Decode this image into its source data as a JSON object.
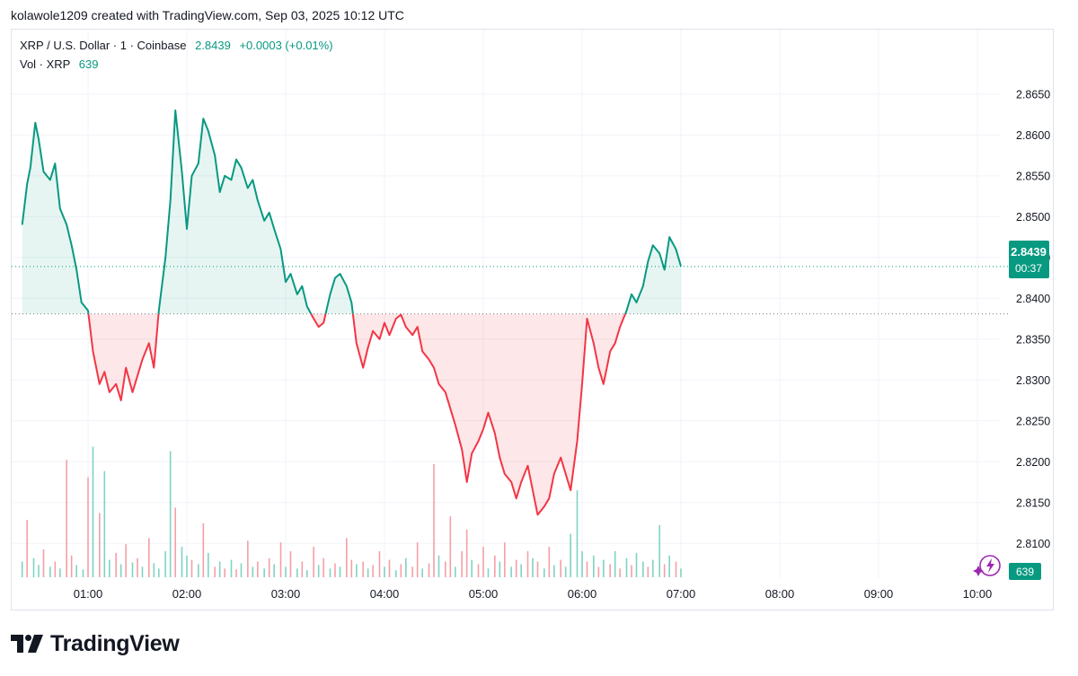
{
  "header": {
    "credit": "kolawole1209 created with TradingView.com, Sep 03, 2025 10:12 UTC"
  },
  "legend": {
    "symbol": "XRP / U.S. Dollar · 1 · Coinbase",
    "price": "2.8439",
    "change": "+0.0003 (+0.01%)",
    "vol_label": "Vol · XRP",
    "vol_value": "639"
  },
  "price_tag": {
    "price": "2.8439",
    "countdown": "00:37"
  },
  "volume_tag": "639",
  "footer": {
    "brand": "TradingView"
  },
  "colors": {
    "up": "#089981",
    "down": "#f23645",
    "grid": "#f0f3fa",
    "axis_text": "#131722"
  },
  "chart_data": {
    "type": "line",
    "title": "XRP / U.S. Dollar · 1 · Coinbase",
    "baseline": 2.8381,
    "last_price": 2.8439,
    "ylim": [
      2.8075,
      2.8685
    ],
    "y_ticks": [
      "2.8100",
      "2.8150",
      "2.8200",
      "2.8250",
      "2.8300",
      "2.8350",
      "2.8400",
      "2.8450",
      "2.8500",
      "2.8550",
      "2.8600",
      "2.8650"
    ],
    "x_ticks": [
      "01:00",
      "02:00",
      "03:00",
      "04:00",
      "05:00",
      "06:00",
      "07:00",
      "08:00",
      "09:00",
      "10:00"
    ],
    "price_points": [
      [
        "00:20",
        2.849
      ],
      [
        "00:23",
        2.854
      ],
      [
        "00:25",
        2.856
      ],
      [
        "00:28",
        2.8615
      ],
      [
        "00:30",
        2.8595
      ],
      [
        "00:33",
        2.8555
      ],
      [
        "00:37",
        2.8545
      ],
      [
        "00:40",
        2.8565
      ],
      [
        "00:43",
        2.851
      ],
      [
        "00:47",
        2.849
      ],
      [
        "00:50",
        2.8465
      ],
      [
        "00:53",
        2.8435
      ],
      [
        "00:56",
        2.8395
      ],
      [
        "01:00",
        2.8385
      ],
      [
        "01:03",
        2.8335
      ],
      [
        "01:07",
        2.8295
      ],
      [
        "01:10",
        2.831
      ],
      [
        "01:13",
        2.8285
      ],
      [
        "01:17",
        2.8295
      ],
      [
        "01:20",
        2.8275
      ],
      [
        "01:23",
        2.8315
      ],
      [
        "01:27",
        2.8285
      ],
      [
        "01:30",
        2.8305
      ],
      [
        "01:33",
        2.8325
      ],
      [
        "01:37",
        2.8345
      ],
      [
        "01:40",
        2.8315
      ],
      [
        "01:43",
        2.8385
      ],
      [
        "01:47",
        2.845
      ],
      [
        "01:50",
        2.852
      ],
      [
        "01:53",
        2.863
      ],
      [
        "01:57",
        2.8555
      ],
      [
        "02:00",
        2.8485
      ],
      [
        "02:03",
        2.855
      ],
      [
        "02:07",
        2.8565
      ],
      [
        "02:10",
        2.862
      ],
      [
        "02:13",
        2.8605
      ],
      [
        "02:17",
        2.8575
      ],
      [
        "02:20",
        2.853
      ],
      [
        "02:23",
        2.855
      ],
      [
        "02:27",
        2.8545
      ],
      [
        "02:30",
        2.857
      ],
      [
        "02:33",
        2.856
      ],
      [
        "02:37",
        2.8535
      ],
      [
        "02:40",
        2.8545
      ],
      [
        "02:43",
        2.852
      ],
      [
        "02:47",
        2.8495
      ],
      [
        "02:50",
        2.8505
      ],
      [
        "02:53",
        2.8485
      ],
      [
        "02:57",
        2.846
      ],
      [
        "03:00",
        2.842
      ],
      [
        "03:03",
        2.843
      ],
      [
        "03:07",
        2.8405
      ],
      [
        "03:10",
        2.8415
      ],
      [
        "03:13",
        2.839
      ],
      [
        "03:17",
        2.8375
      ],
      [
        "03:20",
        2.8365
      ],
      [
        "03:23",
        2.837
      ],
      [
        "03:27",
        2.8405
      ],
      [
        "03:30",
        2.8425
      ],
      [
        "03:33",
        2.843
      ],
      [
        "03:37",
        2.8415
      ],
      [
        "03:40",
        2.8395
      ],
      [
        "03:43",
        2.8345
      ],
      [
        "03:47",
        2.8315
      ],
      [
        "03:50",
        2.834
      ],
      [
        "03:53",
        2.836
      ],
      [
        "03:57",
        2.835
      ],
      [
        "04:00",
        2.837
      ],
      [
        "04:03",
        2.8355
      ],
      [
        "04:07",
        2.8375
      ],
      [
        "04:10",
        2.838
      ],
      [
        "04:13",
        2.8365
      ],
      [
        "04:17",
        2.8355
      ],
      [
        "04:20",
        2.8365
      ],
      [
        "04:23",
        2.8335
      ],
      [
        "04:27",
        2.8325
      ],
      [
        "04:30",
        2.8315
      ],
      [
        "04:33",
        2.8295
      ],
      [
        "04:37",
        2.8285
      ],
      [
        "04:40",
        2.8265
      ],
      [
        "04:43",
        2.8245
      ],
      [
        "04:47",
        2.8215
      ],
      [
        "04:50",
        2.8175
      ],
      [
        "04:53",
        2.821
      ],
      [
        "04:57",
        2.8225
      ],
      [
        "05:00",
        2.824
      ],
      [
        "05:03",
        2.826
      ],
      [
        "05:07",
        2.8235
      ],
      [
        "05:10",
        2.8205
      ],
      [
        "05:13",
        2.8185
      ],
      [
        "05:17",
        2.8175
      ],
      [
        "05:20",
        2.8155
      ],
      [
        "05:23",
        2.8175
      ],
      [
        "05:27",
        2.8195
      ],
      [
        "05:30",
        2.8165
      ],
      [
        "05:33",
        2.8135
      ],
      [
        "05:37",
        2.8145
      ],
      [
        "05:40",
        2.8155
      ],
      [
        "05:43",
        2.8185
      ],
      [
        "05:47",
        2.8205
      ],
      [
        "05:50",
        2.8185
      ],
      [
        "05:53",
        2.8165
      ],
      [
        "05:57",
        2.8225
      ],
      [
        "06:00",
        2.8295
      ],
      [
        "06:03",
        2.8375
      ],
      [
        "06:07",
        2.8345
      ],
      [
        "06:10",
        2.8315
      ],
      [
        "06:13",
        2.8295
      ],
      [
        "06:17",
        2.8335
      ],
      [
        "06:20",
        2.8345
      ],
      [
        "06:23",
        2.8365
      ],
      [
        "06:27",
        2.8385
      ],
      [
        "06:30",
        2.8405
      ],
      [
        "06:33",
        2.8395
      ],
      [
        "06:37",
        2.8415
      ],
      [
        "06:40",
        2.8445
      ],
      [
        "06:43",
        2.8465
      ],
      [
        "06:47",
        2.8455
      ],
      [
        "06:50",
        2.8435
      ],
      [
        "06:53",
        2.8475
      ],
      [
        "06:57",
        2.846
      ],
      [
        "07:00",
        2.8439
      ]
    ],
    "volume_ylim": [
      0,
      160
    ],
    "volume_points": [
      [
        "00:20",
        18,
        "up"
      ],
      [
        "00:23",
        66,
        "down"
      ],
      [
        "00:27",
        22,
        "up"
      ],
      [
        "00:30",
        14,
        "up"
      ],
      [
        "00:33",
        32,
        "down"
      ],
      [
        "00:37",
        12,
        "up"
      ],
      [
        "00:40",
        18,
        "down"
      ],
      [
        "00:43",
        10,
        "up"
      ],
      [
        "00:47",
        135,
        "down"
      ],
      [
        "00:50",
        25,
        "down"
      ],
      [
        "00:53",
        14,
        "up"
      ],
      [
        "00:57",
        9,
        "up"
      ],
      [
        "01:00",
        115,
        "down"
      ],
      [
        "01:03",
        150,
        "up"
      ],
      [
        "01:07",
        74,
        "down"
      ],
      [
        "01:10",
        122,
        "up"
      ],
      [
        "01:13",
        20,
        "up"
      ],
      [
        "01:17",
        28,
        "down"
      ],
      [
        "01:20",
        15,
        "up"
      ],
      [
        "01:23",
        38,
        "down"
      ],
      [
        "01:27",
        17,
        "up"
      ],
      [
        "01:30",
        22,
        "down"
      ],
      [
        "01:33",
        12,
        "up"
      ],
      [
        "01:37",
        45,
        "down"
      ],
      [
        "01:40",
        16,
        "up"
      ],
      [
        "01:43",
        10,
        "up"
      ],
      [
        "01:47",
        30,
        "up"
      ],
      [
        "01:50",
        145,
        "up"
      ],
      [
        "01:53",
        80,
        "down"
      ],
      [
        "01:57",
        35,
        "up"
      ],
      [
        "02:00",
        25,
        "up"
      ],
      [
        "02:03",
        20,
        "down"
      ],
      [
        "02:07",
        15,
        "up"
      ],
      [
        "02:10",
        62,
        "down"
      ],
      [
        "02:13",
        28,
        "up"
      ],
      [
        "02:17",
        12,
        "down"
      ],
      [
        "02:20",
        18,
        "up"
      ],
      [
        "02:23",
        10,
        "down"
      ],
      [
        "02:27",
        20,
        "up"
      ],
      [
        "02:30",
        9,
        "down"
      ],
      [
        "02:33",
        16,
        "up"
      ],
      [
        "02:37",
        42,
        "down"
      ],
      [
        "02:40",
        12,
        "up"
      ],
      [
        "02:43",
        18,
        "down"
      ],
      [
        "02:47",
        10,
        "up"
      ],
      [
        "02:50",
        22,
        "down"
      ],
      [
        "02:53",
        15,
        "up"
      ],
      [
        "02:57",
        40,
        "down"
      ],
      [
        "03:00",
        12,
        "up"
      ],
      [
        "03:03",
        30,
        "down"
      ],
      [
        "03:07",
        10,
        "up"
      ],
      [
        "03:10",
        18,
        "down"
      ],
      [
        "03:13",
        8,
        "up"
      ],
      [
        "03:17",
        35,
        "down"
      ],
      [
        "03:20",
        14,
        "up"
      ],
      [
        "03:23",
        22,
        "down"
      ],
      [
        "03:27",
        10,
        "up"
      ],
      [
        "03:30",
        16,
        "down"
      ],
      [
        "03:33",
        12,
        "up"
      ],
      [
        "03:37",
        45,
        "down"
      ],
      [
        "03:40",
        20,
        "down"
      ],
      [
        "03:43",
        15,
        "up"
      ],
      [
        "03:47",
        18,
        "down"
      ],
      [
        "03:50",
        10,
        "up"
      ],
      [
        "03:53",
        14,
        "down"
      ],
      [
        "03:57",
        30,
        "down"
      ],
      [
        "04:00",
        12,
        "up"
      ],
      [
        "04:03",
        20,
        "down"
      ],
      [
        "04:07",
        8,
        "up"
      ],
      [
        "04:10",
        15,
        "down"
      ],
      [
        "04:13",
        22,
        "up"
      ],
      [
        "04:17",
        12,
        "down"
      ],
      [
        "04:20",
        40,
        "down"
      ],
      [
        "04:23",
        10,
        "up"
      ],
      [
        "04:27",
        16,
        "down"
      ],
      [
        "04:30",
        130,
        "down"
      ],
      [
        "04:33",
        25,
        "up"
      ],
      [
        "04:37",
        18,
        "down"
      ],
      [
        "04:40",
        70,
        "down"
      ],
      [
        "04:43",
        12,
        "up"
      ],
      [
        "04:47",
        30,
        "down"
      ],
      [
        "04:50",
        55,
        "down"
      ],
      [
        "04:53",
        20,
        "up"
      ],
      [
        "04:57",
        15,
        "down"
      ],
      [
        "05:00",
        35,
        "down"
      ],
      [
        "05:03",
        10,
        "up"
      ],
      [
        "05:07",
        25,
        "down"
      ],
      [
        "05:10",
        18,
        "up"
      ],
      [
        "05:13",
        40,
        "down"
      ],
      [
        "05:17",
        12,
        "up"
      ],
      [
        "05:20",
        20,
        "down"
      ],
      [
        "05:23",
        15,
        "up"
      ],
      [
        "05:27",
        30,
        "down"
      ],
      [
        "05:30",
        22,
        "up"
      ],
      [
        "05:33",
        18,
        "down"
      ],
      [
        "05:37",
        10,
        "up"
      ],
      [
        "05:40",
        35,
        "down"
      ],
      [
        "05:43",
        14,
        "up"
      ],
      [
        "05:47",
        20,
        "down"
      ],
      [
        "05:50",
        12,
        "up"
      ],
      [
        "05:53",
        50,
        "up"
      ],
      [
        "05:57",
        100,
        "up"
      ],
      [
        "06:00",
        30,
        "up"
      ],
      [
        "06:03",
        18,
        "down"
      ],
      [
        "06:07",
        25,
        "up"
      ],
      [
        "06:10",
        12,
        "down"
      ],
      [
        "06:13",
        20,
        "up"
      ],
      [
        "06:17",
        15,
        "down"
      ],
      [
        "06:20",
        30,
        "up"
      ],
      [
        "06:23",
        10,
        "down"
      ],
      [
        "06:27",
        22,
        "up"
      ],
      [
        "06:30",
        14,
        "down"
      ],
      [
        "06:33",
        28,
        "up"
      ],
      [
        "06:37",
        18,
        "up"
      ],
      [
        "06:40",
        12,
        "down"
      ],
      [
        "06:43",
        20,
        "up"
      ],
      [
        "06:47",
        60,
        "up"
      ],
      [
        "06:50",
        15,
        "down"
      ],
      [
        "06:53",
        25,
        "up"
      ],
      [
        "06:57",
        18,
        "down"
      ],
      [
        "07:00",
        10,
        "up"
      ]
    ]
  }
}
